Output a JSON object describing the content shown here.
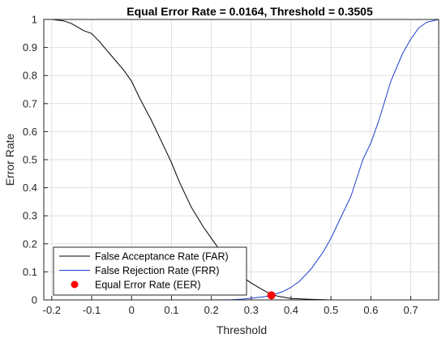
{
  "chart_data": {
    "type": "line",
    "title": "Equal Error Rate = 0.0164, Threshold = 0.3505",
    "xlabel": "Threshold",
    "ylabel": "Error Rate",
    "xlim": [
      -0.22,
      0.77
    ],
    "ylim": [
      0,
      1
    ],
    "xticks": [
      "-0.2",
      "-0.1",
      "0",
      "0.1",
      "0.2",
      "0.3",
      "0.4",
      "0.5",
      "0.6",
      "0.7"
    ],
    "yticks": [
      "0",
      "0.1",
      "0.2",
      "0.3",
      "0.4",
      "0.5",
      "0.6",
      "0.7",
      "0.8",
      "0.9",
      "1"
    ],
    "grid": true,
    "legend_position": "bottom-left",
    "series": [
      {
        "name": "False Acceptance Rate (FAR)",
        "color": "#000000",
        "x": [
          -0.2,
          -0.17,
          -0.15,
          -0.12,
          -0.1,
          -0.08,
          -0.05,
          -0.02,
          0.0,
          0.02,
          0.05,
          0.08,
          0.1,
          0.12,
          0.15,
          0.18,
          0.2,
          0.22,
          0.25,
          0.28,
          0.3,
          0.33,
          0.35,
          0.37,
          0.4,
          0.45,
          0.5,
          0.55,
          0.6,
          0.65,
          0.7,
          0.77
        ],
        "y": [
          1.0,
          0.995,
          0.985,
          0.96,
          0.95,
          0.92,
          0.87,
          0.82,
          0.78,
          0.72,
          0.64,
          0.55,
          0.49,
          0.42,
          0.33,
          0.26,
          0.22,
          0.18,
          0.12,
          0.08,
          0.06,
          0.035,
          0.02,
          0.012,
          0.005,
          0.002,
          0.0,
          0.0,
          0.0,
          0.0,
          0.0,
          0.0
        ]
      },
      {
        "name": "False Rejection Rate (FRR)",
        "color": "#1f3fcf",
        "x": [
          -0.2,
          -0.1,
          0.0,
          0.1,
          0.2,
          0.25,
          0.28,
          0.3,
          0.33,
          0.35,
          0.38,
          0.4,
          0.42,
          0.45,
          0.48,
          0.5,
          0.52,
          0.55,
          0.58,
          0.6,
          0.62,
          0.65,
          0.68,
          0.7,
          0.72,
          0.74,
          0.77
        ],
        "y": [
          0.0,
          0.0,
          0.0,
          0.0,
          0.0,
          0.001,
          0.003,
          0.006,
          0.011,
          0.016,
          0.03,
          0.045,
          0.065,
          0.11,
          0.17,
          0.22,
          0.28,
          0.37,
          0.5,
          0.56,
          0.64,
          0.78,
          0.88,
          0.93,
          0.97,
          0.99,
          1.0
        ]
      }
    ],
    "markers": [
      {
        "name": "Equal Error Rate (EER)",
        "color": "#ff0000",
        "x": 0.3505,
        "y": 0.0164
      }
    ]
  }
}
